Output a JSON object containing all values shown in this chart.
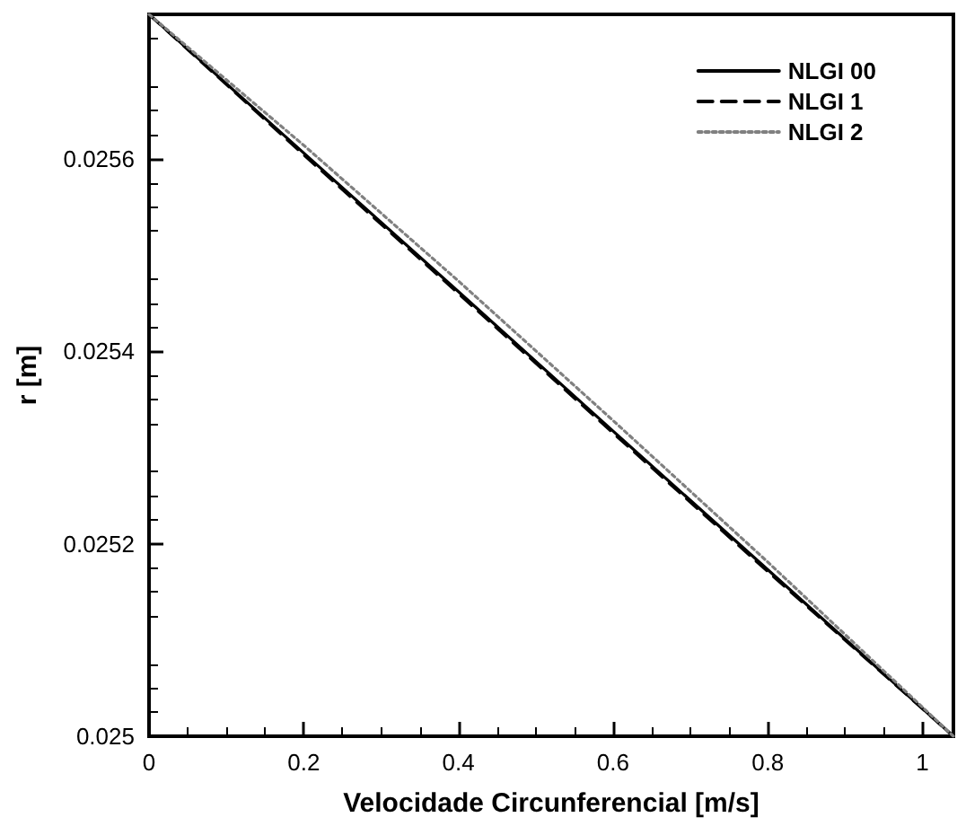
{
  "chart_data": {
    "type": "line",
    "xlabel": "Velocidade Circunferencial [m/s]",
    "ylabel": "r [m]",
    "x": [
      0,
      0.2,
      0.4,
      0.6,
      0.8,
      1.04
    ],
    "series": [
      {
        "name": "NLGI 00",
        "color": "#000000",
        "line_style": "solid",
        "values": [
          0.02575,
          0.025606,
          0.025462,
          0.025317,
          0.025173,
          0.025
        ]
      },
      {
        "name": "NLGI 1",
        "color": "#000000",
        "line_style": "dashed",
        "values": [
          0.02575,
          0.025604,
          0.02546,
          0.025315,
          0.025171,
          0.025
        ]
      },
      {
        "name": "NLGI 2",
        "color": "#808080",
        "line_style": "dotted",
        "values": [
          0.02575,
          0.025614,
          0.025473,
          0.025328,
          0.025181,
          0.025
        ]
      }
    ],
    "xlim": [
      0,
      1.04
    ],
    "xticks": [
      0,
      0.2,
      0.4,
      0.6,
      0.8,
      1
    ],
    "ylim": [
      0.025,
      0.02575
    ],
    "yticks": [
      0.025,
      0.0252,
      0.0254,
      0.0256
    ],
    "grid": false,
    "legend": "top right",
    "marker": "none"
  }
}
